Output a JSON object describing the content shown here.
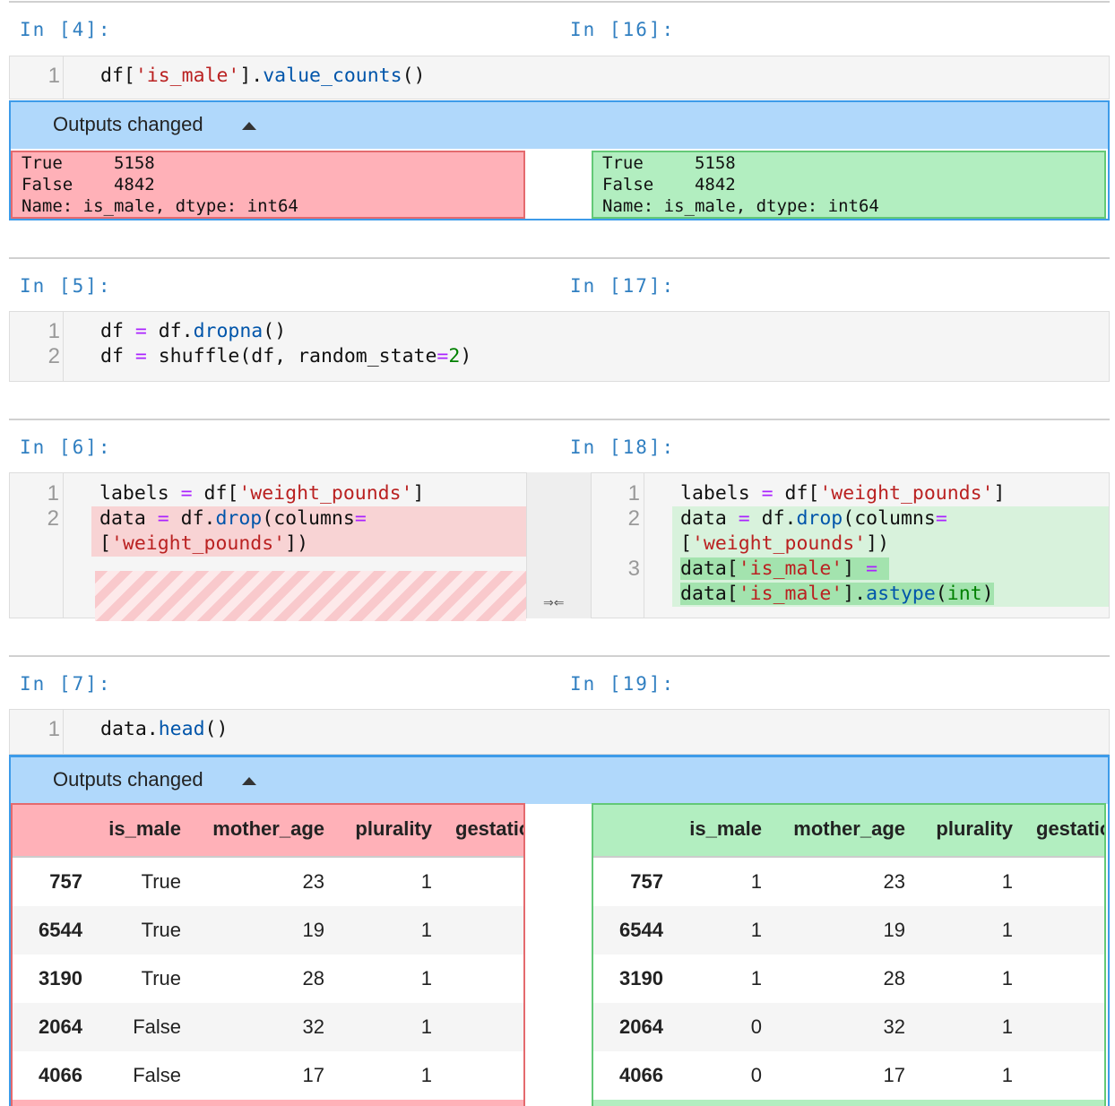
{
  "cells": [
    {
      "left_prompt": "In [4]:",
      "right_prompt": "In [16]:",
      "source": {
        "line_numbers": [
          1
        ],
        "lines": [
          [
            "df[",
            "'is_male'",
            "].",
            "value_counts",
            "()"
          ]
        ]
      },
      "outputs": {
        "header": "Outputs changed",
        "left": [
          "True     5158",
          "False    4842",
          "Name: is_male, dtype: int64"
        ],
        "right": [
          "True     5158",
          "False    4842",
          "Name: is_male, dtype: int64"
        ]
      }
    },
    {
      "left_prompt": "In [5]:",
      "right_prompt": "In [17]:",
      "source": {
        "line_numbers": [
          1,
          2
        ],
        "lines": [
          [
            "df ",
            "=",
            " df.",
            "dropna",
            "()"
          ],
          [
            "df ",
            "=",
            " shuffle(df, random_state",
            "=",
            "2",
            ")"
          ]
        ]
      }
    },
    {
      "left_prompt": "In [6]:",
      "right_prompt": "In [18]:",
      "left": {
        "line_numbers": [
          1,
          2
        ],
        "lines": [
          [
            "labels ",
            "=",
            " df[",
            "'weight_pounds'",
            "]"
          ],
          [
            "data ",
            "=",
            " df.",
            "drop",
            "(columns",
            "=",
            "[",
            "'weight_pounds'",
            "])"
          ]
        ]
      },
      "right": {
        "line_numbers": [
          1,
          2,
          3
        ],
        "lines": [
          [
            "labels ",
            "=",
            " df[",
            "'weight_pounds'",
            "]"
          ],
          [
            "data ",
            "=",
            " df.",
            "drop",
            "(columns",
            "=",
            "[",
            "'weight_pounds'",
            "])"
          ],
          [
            "data[",
            "'is_male'",
            "] ",
            "=",
            " data[",
            "'is_male'",
            "].",
            "astype",
            "(",
            "int",
            ")"
          ]
        ]
      }
    },
    {
      "left_prompt": "In [7]:",
      "right_prompt": "In [19]:",
      "source": {
        "line_numbers": [
          1
        ],
        "lines": [
          [
            "data.",
            "head",
            "()"
          ]
        ]
      },
      "outputs": {
        "header": "Outputs changed",
        "left": {
          "columns": [
            "is_male",
            "mother_age",
            "plurality",
            "gestation_weeks"
          ],
          "rows": [
            [
              757,
              "True",
              23,
              1
            ],
            [
              6544,
              "True",
              19,
              1
            ],
            [
              3190,
              "True",
              28,
              1
            ],
            [
              2064,
              "False",
              32,
              1
            ],
            [
              4066,
              "False",
              17,
              1
            ]
          ]
        },
        "right": {
          "columns": [
            "is_male",
            "mother_age",
            "plurality",
            "gestation_weeks"
          ],
          "rows": [
            [
              757,
              1,
              23,
              1
            ],
            [
              6544,
              1,
              19,
              1
            ],
            [
              3190,
              1,
              28,
              1
            ],
            [
              2064,
              0,
              32,
              1
            ],
            [
              4066,
              0,
              17,
              1
            ]
          ]
        }
      }
    }
  ]
}
